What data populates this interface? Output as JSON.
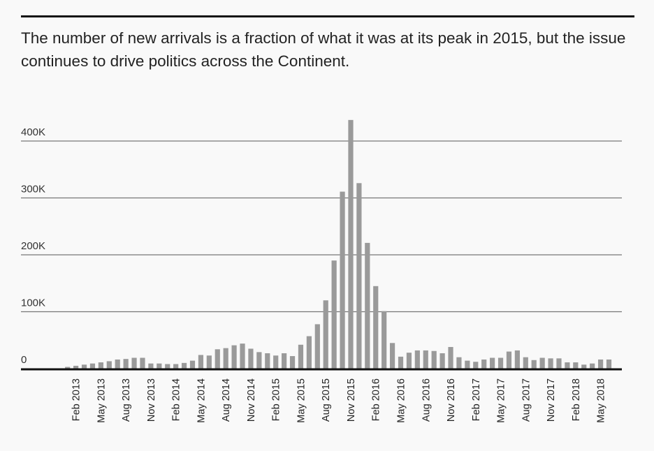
{
  "header": {
    "subtitle": "The number of new arrivals is a fraction of what it was at its peak in 2015, but the issue continues to drive politics across the Continent."
  },
  "chart_data": {
    "type": "bar",
    "title": "",
    "xlabel": "",
    "ylabel": "",
    "ylim": [
      0,
      430000
    ],
    "y_ticks": [
      0,
      100000,
      200000,
      300000,
      400000
    ],
    "y_tick_labels": [
      "0",
      "100K",
      "200K",
      "300K",
      "400K"
    ],
    "x_tick_labels": [
      "Feb 2013",
      "May 2013",
      "Aug 2013",
      "Nov 2013",
      "Feb 2014",
      "May 2014",
      "Aug 2014",
      "Nov 2014",
      "Feb 2015",
      "May 2015",
      "Aug 2015",
      "Nov 2015",
      "Feb 2016",
      "May 2016",
      "Aug 2016",
      "Nov 2016",
      "Feb 2017",
      "May 2017",
      "Aug 2017",
      "Nov 2017",
      "Feb 2018",
      "May 2018"
    ],
    "categories": [
      "Jan 2013",
      "Feb 2013",
      "Mar 2013",
      "Apr 2013",
      "May 2013",
      "Jun 2013",
      "Jul 2013",
      "Aug 2013",
      "Sep 2013",
      "Oct 2013",
      "Nov 2013",
      "Dec 2013",
      "Jan 2014",
      "Feb 2014",
      "Mar 2014",
      "Apr 2014",
      "May 2014",
      "Jun 2014",
      "Jul 2014",
      "Aug 2014",
      "Sep 2014",
      "Oct 2014",
      "Nov 2014",
      "Dec 2014",
      "Jan 2015",
      "Feb 2015",
      "Mar 2015",
      "Apr 2015",
      "May 2015",
      "Jun 2015",
      "Jul 2015",
      "Aug 2015",
      "Sep 2015",
      "Oct 2015",
      "Nov 2015",
      "Dec 2015",
      "Jan 2016",
      "Feb 2016",
      "Mar 2016",
      "Apr 2016",
      "May 2016",
      "Jun 2016",
      "Jul 2016",
      "Aug 2016",
      "Sep 2016",
      "Oct 2016",
      "Nov 2016",
      "Dec 2016",
      "Jan 2017",
      "Feb 2017",
      "Mar 2017",
      "Apr 2017",
      "May 2017",
      "Jun 2017",
      "Jul 2017",
      "Aug 2017",
      "Sep 2017",
      "Oct 2017",
      "Nov 2017",
      "Dec 2017",
      "Jan 2018",
      "Feb 2018",
      "Mar 2018",
      "Apr 2018",
      "May 2018",
      "Jun 2018"
    ],
    "values": [
      3000,
      5000,
      7000,
      9000,
      11000,
      13000,
      16000,
      17000,
      19000,
      19000,
      9000,
      9000,
      8000,
      8000,
      10000,
      14000,
      24000,
      23000,
      34000,
      36000,
      41000,
      44000,
      35000,
      29000,
      27000,
      23000,
      27000,
      22000,
      42000,
      57000,
      78000,
      120000,
      190000,
      311000,
      437000,
      326000,
      221000,
      145000,
      101000,
      45000,
      21000,
      28000,
      32000,
      32000,
      31000,
      27000,
      38000,
      20000,
      14000,
      12000,
      16000,
      19000,
      19000,
      30000,
      32000,
      20000,
      15000,
      19000,
      18000,
      18000,
      11000,
      11000,
      7000,
      9000,
      16000,
      16000
    ],
    "grid": true,
    "colors": {
      "bar": "#9a9a9a",
      "grid": "#777777",
      "axis": "#111111"
    }
  }
}
